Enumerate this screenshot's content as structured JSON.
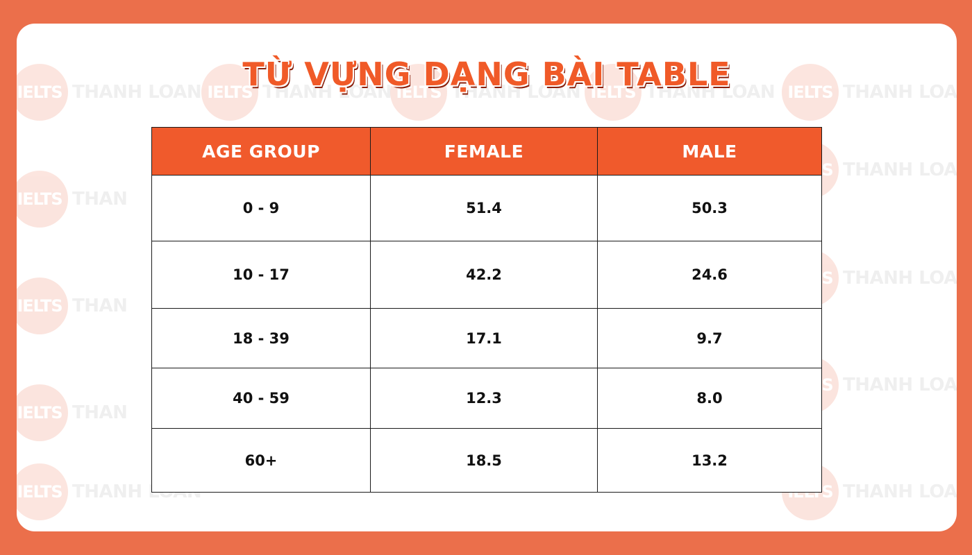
{
  "title": "TỪ VỰNG DẠNG BÀI TABLE",
  "watermark": {
    "badge": "IELTS",
    "text": "THANH LOAN",
    "text_short": "THAN"
  },
  "colors": {
    "background": "#eb6f4b",
    "header": "#f05a2c",
    "title": "#f05a28"
  },
  "chart_data": {
    "type": "table",
    "columns": [
      "AGE GROUP",
      "FEMALE",
      "MALE"
    ],
    "rows": [
      [
        "0 - 9",
        "51.4",
        "50.3"
      ],
      [
        "10 - 17",
        "42.2",
        "24.6"
      ],
      [
        "18 - 39",
        "17.1",
        "9.7"
      ],
      [
        "40 - 59",
        "12.3",
        "8.0"
      ],
      [
        "60+",
        "18.5",
        "13.2"
      ]
    ]
  }
}
